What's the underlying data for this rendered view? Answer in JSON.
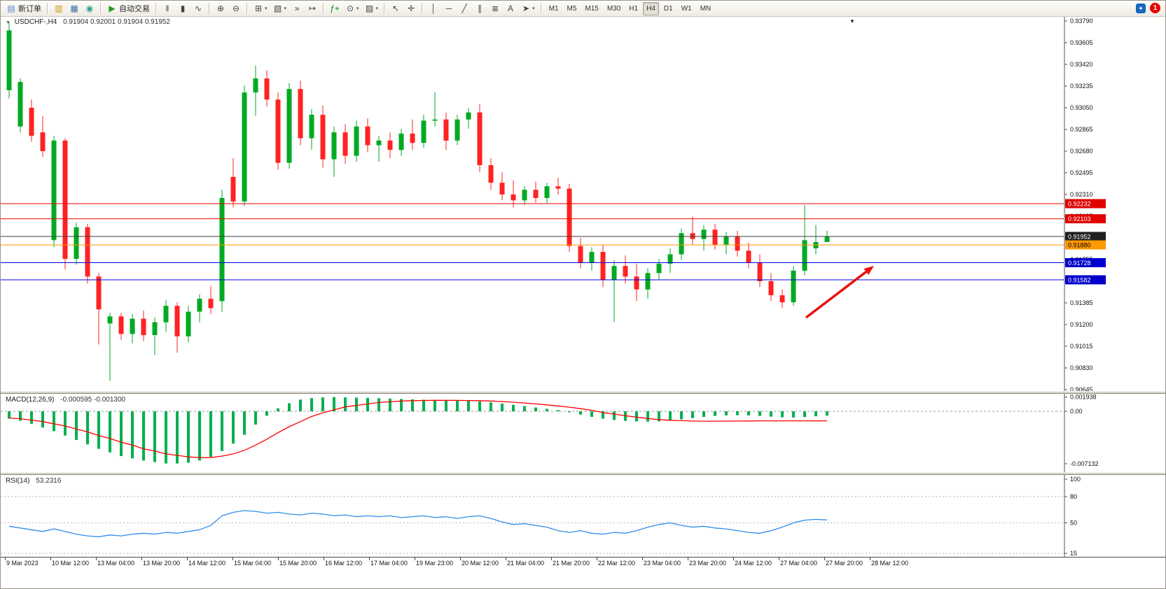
{
  "toolbar": {
    "groups": [
      {
        "items": [
          {
            "name": "new-order-button",
            "label": "新订单",
            "glyph": "▤",
            "gcolor": "#5a7edc"
          }
        ]
      },
      {
        "items": [
          {
            "name": "market-watch-icon",
            "glyph": "▥",
            "gcolor": "#c8960c"
          },
          {
            "name": "data-window-icon",
            "glyph": "▦",
            "gcolor": "#3a6ea5"
          },
          {
            "name": "navigator-icon",
            "glyph": "◉",
            "gcolor": "#2a9d8f"
          }
        ]
      },
      {
        "items": [
          {
            "name": "autotrading-button",
            "label": "自动交易",
            "glyph": "▶",
            "gcolor": "#1f9d1f"
          }
        ]
      },
      {
        "items": [
          {
            "name": "bar-chart-button",
            "glyph": "‖"
          },
          {
            "name": "candlestick-chart-button",
            "glyph": "▮"
          },
          {
            "name": "line-chart-button",
            "glyph": "∿"
          }
        ]
      },
      {
        "items": [
          {
            "name": "zoom-in-button",
            "glyph": "⊕"
          },
          {
            "name": "zoom-out-button",
            "glyph": "⊖"
          }
        ]
      },
      {
        "items": [
          {
            "name": "new-chart-button",
            "glyph": "⊞",
            "caret": true
          },
          {
            "name": "profiles-button",
            "glyph": "▧",
            "caret": true
          },
          {
            "name": "auto-scroll-button",
            "glyph": "»"
          },
          {
            "name": "chart-shift-button",
            "glyph": "↦"
          }
        ]
      },
      {
        "items": [
          {
            "name": "indicators-button",
            "glyph": "ƒ+",
            "gcolor": "#0a8a0a"
          },
          {
            "name": "periods-button",
            "glyph": "⊙",
            "caret": true
          },
          {
            "name": "templates-button",
            "glyph": "▨",
            "caret": true
          }
        ]
      },
      {
        "items": [
          {
            "name": "cursor-button",
            "glyph": "↖"
          },
          {
            "name": "crosshair-button",
            "glyph": "✛"
          }
        ]
      },
      {
        "items": [
          {
            "name": "vertical-line-button",
            "glyph": "│"
          },
          {
            "name": "horizontal-line-button",
            "glyph": "─"
          },
          {
            "name": "trendline-button",
            "glyph": "╱"
          },
          {
            "name": "channel-button",
            "glyph": "∥"
          },
          {
            "name": "fibonacci-button",
            "glyph": "≣"
          },
          {
            "name": "text-button",
            "glyph": "A"
          },
          {
            "name": "arrows-button",
            "glyph": "➤",
            "caret": true
          }
        ]
      }
    ],
    "timeframes": [
      "M1",
      "M5",
      "M15",
      "M30",
      "H1",
      "H4",
      "D1",
      "W1",
      "MN"
    ],
    "active_timeframe": "H4",
    "notification_count": "1"
  },
  "chart": {
    "symbol": "USDCHF-,H4",
    "ohlc": "0.91904 0.92001 0.91904 0.91952"
  },
  "chart_data": {
    "type": "candlestick",
    "title": "USDCHF-,H4",
    "colors": {
      "up": "#00aa22",
      "down": "#ff2222",
      "macd_bar": "#00b050",
      "macd_signal": "#ff0000",
      "rsi_line": "#2d8ceb"
    },
    "price_axis": {
      "max": 0.9379,
      "min": 0.90645,
      "step": 0.00185,
      "labels": [
        "0.93790",
        "0.93605",
        "0.93420",
        "0.93235",
        "0.93050",
        "0.92865",
        "0.92680",
        "0.92495",
        "0.92310",
        "0.92125",
        "0.91940",
        "0.91755",
        "0.91570",
        "0.91385",
        "0.91200",
        "0.91015",
        "0.90830",
        "0.90645"
      ]
    },
    "hlines": [
      {
        "price": 0.92232,
        "color": "#ee0000",
        "label": "0.92232",
        "tag_bg": "#e00000",
        "tag_fg": "#ffffff"
      },
      {
        "price": 0.92103,
        "color": "#ee0000",
        "label": "0.92103",
        "tag_bg": "#e00000",
        "tag_fg": "#ffffff"
      },
      {
        "price": 0.91952,
        "color": "#3c3c3c",
        "label": "0.91952",
        "tag_bg": "#1f1f1f",
        "tag_fg": "#ffffff"
      },
      {
        "price": 0.9188,
        "color": "#ff9900",
        "label": "0.91880",
        "tag_bg": "#ff9900",
        "tag_fg": "#000000"
      },
      {
        "price": 0.91728,
        "color": "#0000dd",
        "label": "0.91728",
        "tag_bg": "#0000cc",
        "tag_fg": "#ffffff"
      },
      {
        "price": 0.91582,
        "color": "#0000dd",
        "label": "0.91582",
        "tag_bg": "#0000cc",
        "tag_fg": "#ffffff"
      }
    ],
    "arrow": {
      "from": [
        1150,
        431
      ],
      "to": [
        1247,
        357
      ],
      "color": "#e81010",
      "width": 3.5
    },
    "candles": [
      [
        0.932,
        0.9378,
        0.9313,
        0.9371
      ],
      [
        0.9289,
        0.933,
        0.9284,
        0.9327
      ],
      [
        0.9305,
        0.9312,
        0.9276,
        0.9281
      ],
      [
        0.9284,
        0.9298,
        0.9263,
        0.9268
      ],
      [
        0.9192,
        0.9281,
        0.9186,
        0.9277
      ],
      [
        0.9277,
        0.9279,
        0.9167,
        0.9176
      ],
      [
        0.9176,
        0.9207,
        0.9171,
        0.9203
      ],
      [
        0.9203,
        0.9206,
        0.9155,
        0.9161
      ],
      [
        0.9161,
        0.9164,
        0.9103,
        0.9133
      ],
      [
        0.9121,
        0.913,
        0.9072,
        0.9127
      ],
      [
        0.9127,
        0.913,
        0.9107,
        0.9112
      ],
      [
        0.9112,
        0.9129,
        0.9104,
        0.9125
      ],
      [
        0.9125,
        0.9132,
        0.9106,
        0.9111
      ],
      [
        0.9111,
        0.9126,
        0.9094,
        0.9122
      ],
      [
        0.9122,
        0.9141,
        0.9114,
        0.9136
      ],
      [
        0.9136,
        0.9139,
        0.9096,
        0.911
      ],
      [
        0.911,
        0.9136,
        0.9105,
        0.9131
      ],
      [
        0.9131,
        0.9146,
        0.9122,
        0.9142
      ],
      [
        0.9142,
        0.9153,
        0.9129,
        0.9134
      ],
      [
        0.914,
        0.9235,
        0.9131,
        0.9228
      ],
      [
        0.9246,
        0.9262,
        0.922,
        0.9225
      ],
      [
        0.9225,
        0.9324,
        0.9221,
        0.9318
      ],
      [
        0.9318,
        0.9341,
        0.9298,
        0.933
      ],
      [
        0.933,
        0.9337,
        0.9306,
        0.9312
      ],
      [
        0.9312,
        0.9318,
        0.9252,
        0.9258
      ],
      [
        0.9258,
        0.9326,
        0.9253,
        0.9321
      ],
      [
        0.9321,
        0.9328,
        0.9273,
        0.9279
      ],
      [
        0.9279,
        0.9304,
        0.9269,
        0.9299
      ],
      [
        0.9299,
        0.9307,
        0.9254,
        0.9261
      ],
      [
        0.9261,
        0.9289,
        0.9246,
        0.9284
      ],
      [
        0.9284,
        0.9291,
        0.9257,
        0.9264
      ],
      [
        0.9264,
        0.9294,
        0.9259,
        0.9289
      ],
      [
        0.9289,
        0.9296,
        0.9267,
        0.9273
      ],
      [
        0.9273,
        0.9281,
        0.9259,
        0.9277
      ],
      [
        0.9277,
        0.9284,
        0.9262,
        0.9269
      ],
      [
        0.9269,
        0.9287,
        0.9264,
        0.9283
      ],
      [
        0.9283,
        0.9295,
        0.9269,
        0.9275
      ],
      [
        0.9275,
        0.9299,
        0.9271,
        0.9294
      ],
      [
        0.9294,
        0.9318,
        0.9289,
        0.9295
      ],
      [
        0.9295,
        0.9301,
        0.9269,
        0.9277
      ],
      [
        0.9277,
        0.9299,
        0.9273,
        0.9295
      ],
      [
        0.9295,
        0.9305,
        0.9287,
        0.9301
      ],
      [
        0.9301,
        0.9308,
        0.925,
        0.9256
      ],
      [
        0.9256,
        0.9262,
        0.9235,
        0.9241
      ],
      [
        0.9241,
        0.925,
        0.9226,
        0.9231
      ],
      [
        0.9231,
        0.9243,
        0.922,
        0.9226
      ],
      [
        0.9226,
        0.9238,
        0.9222,
        0.9235
      ],
      [
        0.9235,
        0.9242,
        0.9224,
        0.9228
      ],
      [
        0.9228,
        0.9241,
        0.9223,
        0.9238
      ],
      [
        0.9238,
        0.9245,
        0.9231,
        0.9236
      ],
      [
        0.9236,
        0.924,
        0.9182,
        0.9187
      ],
      [
        0.9187,
        0.9194,
        0.9168,
        0.9173
      ],
      [
        0.9173,
        0.9186,
        0.9166,
        0.9182
      ],
      [
        0.9182,
        0.9188,
        0.9152,
        0.9158
      ],
      [
        0.9158,
        0.9175,
        0.9122,
        0.917
      ],
      [
        0.917,
        0.9179,
        0.9155,
        0.9161
      ],
      [
        0.9161,
        0.9172,
        0.914,
        0.915
      ],
      [
        0.915,
        0.9168,
        0.9142,
        0.9164
      ],
      [
        0.9164,
        0.9176,
        0.9158,
        0.9172
      ],
      [
        0.9172,
        0.9185,
        0.9164,
        0.918
      ],
      [
        0.918,
        0.9202,
        0.9175,
        0.9198
      ],
      [
        0.9198,
        0.9212,
        0.9188,
        0.9193
      ],
      [
        0.9193,
        0.9205,
        0.9183,
        0.9201
      ],
      [
        0.9201,
        0.9206,
        0.9184,
        0.9188
      ],
      [
        0.9188,
        0.9199,
        0.918,
        0.9195
      ],
      [
        0.9195,
        0.92,
        0.9178,
        0.9183
      ],
      [
        0.9183,
        0.919,
        0.9168,
        0.9173
      ],
      [
        0.9173,
        0.918,
        0.9152,
        0.9157
      ],
      [
        0.9157,
        0.9164,
        0.914,
        0.9145
      ],
      [
        0.9145,
        0.915,
        0.9134,
        0.9139
      ],
      [
        0.9139,
        0.917,
        0.9136,
        0.9166
      ],
      [
        0.9166,
        0.9222,
        0.9162,
        0.9192
      ],
      [
        0.9185,
        0.9205,
        0.918,
        0.91904
      ],
      [
        0.91904,
        0.92001,
        0.91904,
        0.91952
      ]
    ],
    "time_labels": [
      "9 Mar 2023",
      "10 Mar 12:00",
      "13 Mar 04:00",
      "13 Mar 20:00",
      "14 Mar 12:00",
      "15 Mar 04:00",
      "15 Mar 20:00",
      "16 Mar 12:00",
      "17 Mar 04:00",
      "19 Mar 23:00",
      "20 Mar 12:00",
      "21 Mar 04:00",
      "21 Mar 20:00",
      "22 Mar 12:00",
      "23 Mar 04:00",
      "23 Mar 20:00",
      "24 Mar 12:00",
      "27 Mar 04:00",
      "27 Mar 20:00",
      "28 Mar 12:00"
    ],
    "macd": {
      "title": "MACD(12,26,9)",
      "values": "-0.000595 -0.001300",
      "axis_labels": [
        "0.001938",
        "0.00",
        "-0.007132"
      ],
      "bars": [
        -0.001,
        -0.0013,
        -0.0017,
        -0.0022,
        -0.0027,
        -0.0033,
        -0.0039,
        -0.0045,
        -0.0051,
        -0.0056,
        -0.0061,
        -0.0064,
        -0.0067,
        -0.0069,
        -0.0071,
        -0.0071,
        -0.007,
        -0.0067,
        -0.0062,
        -0.0054,
        -0.0044,
        -0.0032,
        -0.0018,
        -0.0006,
        0.0004,
        0.0011,
        0.0016,
        0.0018,
        0.0019,
        0.00194,
        0.0019,
        0.00187,
        0.00183,
        0.00178,
        0.00173,
        0.00168,
        0.00163,
        0.00158,
        0.00155,
        0.0015,
        0.00147,
        0.00143,
        0.00135,
        0.00122,
        0.00106,
        0.00088,
        0.0007,
        0.00052,
        0.00034,
        0.00016,
        -0.00012,
        -0.00045,
        -0.00075,
        -0.001,
        -0.00118,
        -0.0013,
        -0.00138,
        -0.0014,
        -0.00136,
        -0.00126,
        -0.0011,
        -0.00092,
        -0.00076,
        -0.00063,
        -0.00055,
        -0.00052,
        -0.00055,
        -0.00062,
        -0.00072,
        -0.00082,
        -0.00085,
        -0.00078,
        -0.00068,
        -0.000595
      ],
      "signal": [
        -0.0009,
        -0.001,
        -0.0012,
        -0.0014,
        -0.0017,
        -0.002,
        -0.0024,
        -0.0028,
        -0.0033,
        -0.0037,
        -0.0042,
        -0.0046,
        -0.0051,
        -0.0054,
        -0.0058,
        -0.006,
        -0.0062,
        -0.0063,
        -0.0063,
        -0.0061,
        -0.0058,
        -0.0053,
        -0.0046,
        -0.0038,
        -0.0029,
        -0.0021,
        -0.0014,
        -0.0007,
        -0.0002,
        0.0002,
        0.0006,
        0.0008,
        0.001,
        0.0012,
        0.0013,
        0.0014,
        0.00145,
        0.00148,
        0.0015,
        0.0015,
        0.00149,
        0.00147,
        0.00145,
        0.0014,
        0.00133,
        0.00124,
        0.00113,
        0.00101,
        0.00088,
        0.00073,
        0.00056,
        0.00036,
        0.00014,
        -0.00015,
        -0.00038,
        -0.0006,
        -0.0008,
        -0.00098,
        -0.00112,
        -0.00122,
        -0.00128,
        -0.00132,
        -0.00134,
        -0.00134,
        -0.00133,
        -0.00132,
        -0.00131,
        -0.0013,
        -0.0013,
        -0.0013,
        -0.0013,
        -0.0013,
        -0.0013,
        -0.0013
      ]
    },
    "rsi": {
      "title": "RSI(14)",
      "value": "53.2316",
      "axis_labels": [
        "100",
        "80",
        "50",
        "15"
      ],
      "levels": [
        80,
        50,
        15
      ],
      "series": [
        46,
        44,
        42,
        40,
        43,
        40,
        37,
        35,
        34,
        36,
        35,
        37,
        38,
        37,
        39,
        38,
        40,
        42,
        47,
        58,
        62,
        64,
        63,
        61,
        62,
        60,
        59,
        61,
        60,
        58,
        59,
        57,
        58,
        57,
        58,
        56,
        57,
        58,
        56,
        57,
        55,
        57,
        58,
        55,
        51,
        48,
        49,
        47,
        45,
        41,
        39,
        41,
        38,
        37,
        39,
        38,
        41,
        45,
        48,
        50,
        47,
        45,
        46,
        44,
        43,
        41,
        39,
        38,
        41,
        45,
        50,
        53,
        54,
        53.23
      ]
    }
  }
}
